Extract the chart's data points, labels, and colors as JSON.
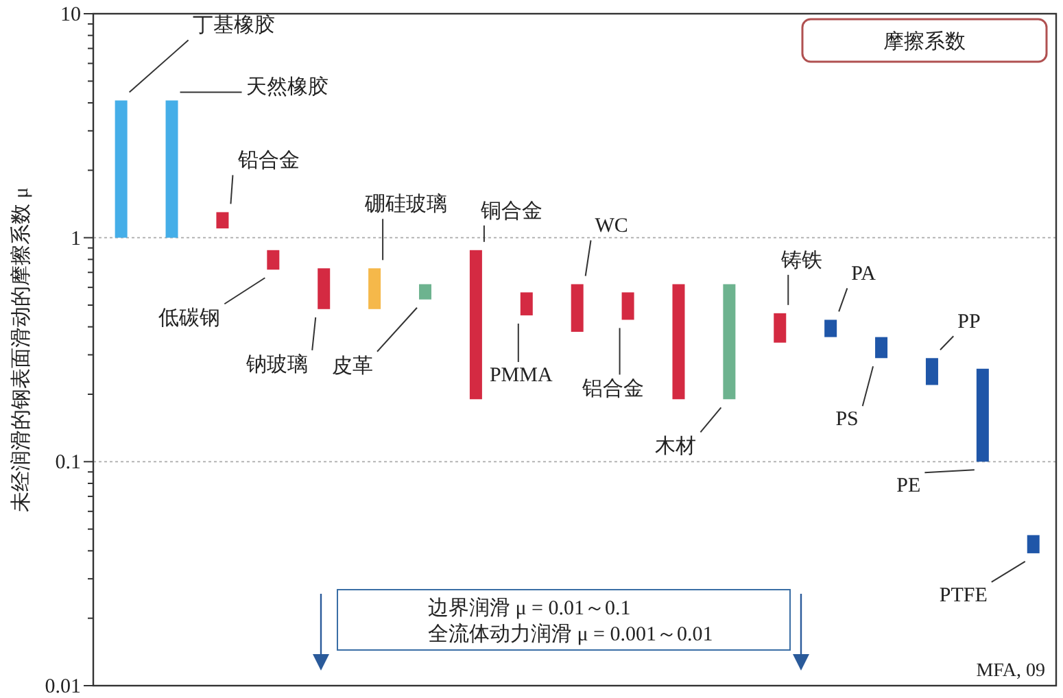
{
  "chart_data": {
    "type": "bar",
    "title": "摩擦系数",
    "ylabel": "未经润滑的钢表面滑动的摩擦系数 μ",
    "categories": [
      null,
      null,
      null,
      null,
      null,
      null,
      null,
      null,
      null,
      null,
      null,
      null,
      null,
      null,
      null,
      null,
      null,
      null,
      null
    ],
    "series": [
      {
        "name": "丁基橡胶",
        "color": "#45aee8",
        "base": [
          1.0,
          null,
          null,
          null,
          null,
          null,
          null,
          null,
          null,
          null,
          null,
          null,
          null,
          null,
          null,
          null,
          null,
          null,
          null
        ],
        "values": [
          3.1,
          null,
          null,
          null,
          null,
          null,
          null,
          null,
          null,
          null,
          null,
          null,
          null,
          null,
          null,
          null,
          null,
          null,
          null
        ]
      },
      {
        "name": "天然橡胶",
        "color": "#45aee8",
        "base": [
          null,
          1.0,
          null,
          null,
          null,
          null,
          null,
          null,
          null,
          null,
          null,
          null,
          null,
          null,
          null,
          null,
          null,
          null,
          null
        ],
        "values": [
          null,
          3.1,
          null,
          null,
          null,
          null,
          null,
          null,
          null,
          null,
          null,
          null,
          null,
          null,
          null,
          null,
          null,
          null,
          null
        ]
      },
      {
        "name": "铅合金",
        "color": "#d42a42",
        "base": [
          null,
          null,
          1.1,
          null,
          null,
          null,
          null,
          null,
          null,
          null,
          null,
          null,
          null,
          null,
          null,
          null,
          null,
          null,
          null
        ],
        "values": [
          null,
          null,
          0.2,
          null,
          null,
          null,
          null,
          null,
          null,
          null,
          null,
          null,
          null,
          null,
          null,
          null,
          null,
          null,
          null
        ]
      },
      {
        "name": "低碳钢",
        "color": "#d42a42",
        "base": [
          null,
          null,
          null,
          0.72,
          null,
          null,
          null,
          null,
          null,
          null,
          null,
          null,
          null,
          null,
          null,
          null,
          null,
          null,
          null
        ],
        "values": [
          null,
          null,
          null,
          0.16,
          null,
          null,
          null,
          null,
          null,
          null,
          null,
          null,
          null,
          null,
          null,
          null,
          null,
          null,
          null
        ]
      },
      {
        "name": "钠玻璃",
        "color": "#d42a42",
        "base": [
          null,
          null,
          null,
          null,
          0.48,
          null,
          null,
          null,
          null,
          null,
          null,
          null,
          null,
          null,
          null,
          null,
          null,
          null,
          null
        ],
        "values": [
          null,
          null,
          null,
          null,
          0.25,
          null,
          null,
          null,
          null,
          null,
          null,
          null,
          null,
          null,
          null,
          null,
          null,
          null,
          null
        ]
      },
      {
        "name": "硼硅玻璃",
        "color": "#f5b84a",
        "base": [
          null,
          null,
          null,
          null,
          null,
          0.48,
          null,
          null,
          null,
          null,
          null,
          null,
          null,
          null,
          null,
          null,
          null,
          null,
          null
        ],
        "values": [
          null,
          null,
          null,
          null,
          null,
          0.25,
          null,
          null,
          null,
          null,
          null,
          null,
          null,
          null,
          null,
          null,
          null,
          null,
          null
        ]
      },
      {
        "name": "皮革",
        "color": "#6db38f",
        "base": [
          null,
          null,
          null,
          null,
          null,
          null,
          0.53,
          null,
          null,
          null,
          null,
          null,
          null,
          null,
          null,
          null,
          null,
          null,
          null
        ],
        "values": [
          null,
          null,
          null,
          null,
          null,
          null,
          0.09,
          null,
          null,
          null,
          null,
          null,
          null,
          null,
          null,
          null,
          null,
          null,
          null
        ]
      },
      {
        "name": "铜合金",
        "color": "#d42a42",
        "base": [
          null,
          null,
          null,
          null,
          null,
          null,
          null,
          0.19,
          null,
          null,
          null,
          null,
          null,
          null,
          null,
          null,
          null,
          null,
          null
        ],
        "values": [
          null,
          null,
          null,
          null,
          null,
          null,
          null,
          0.69,
          null,
          null,
          null,
          null,
          null,
          null,
          null,
          null,
          null,
          null,
          null
        ]
      },
      {
        "name": "PMMA",
        "color": "#d42a42",
        "base": [
          null,
          null,
          null,
          null,
          null,
          null,
          null,
          null,
          0.45,
          null,
          null,
          null,
          null,
          null,
          null,
          null,
          null,
          null,
          null
        ],
        "values": [
          null,
          null,
          null,
          null,
          null,
          null,
          null,
          null,
          0.12,
          null,
          null,
          null,
          null,
          null,
          null,
          null,
          null,
          null,
          null
        ]
      },
      {
        "name": "WC",
        "color": "#d42a42",
        "base": [
          null,
          null,
          null,
          null,
          null,
          null,
          null,
          null,
          null,
          0.38,
          null,
          null,
          null,
          null,
          null,
          null,
          null,
          null,
          null
        ],
        "values": [
          null,
          null,
          null,
          null,
          null,
          null,
          null,
          null,
          null,
          0.24,
          null,
          null,
          null,
          null,
          null,
          null,
          null,
          null,
          null
        ]
      },
      {
        "name": "铝合金",
        "color": "#d42a42",
        "base": [
          null,
          null,
          null,
          null,
          null,
          null,
          null,
          null,
          null,
          null,
          0.43,
          null,
          null,
          null,
          null,
          null,
          null,
          null,
          null
        ],
        "values": [
          null,
          null,
          null,
          null,
          null,
          null,
          null,
          null,
          null,
          null,
          0.14,
          null,
          null,
          null,
          null,
          null,
          null,
          null,
          null
        ]
      },
      {
        "color": "#d42a42",
        "base": [
          null,
          null,
          null,
          null,
          null,
          null,
          null,
          null,
          null,
          null,
          null,
          0.19,
          null,
          null,
          null,
          null,
          null,
          null,
          null
        ],
        "values": [
          null,
          null,
          null,
          null,
          null,
          null,
          null,
          null,
          null,
          null,
          null,
          0.43,
          null,
          null,
          null,
          null,
          null,
          null,
          null
        ]
      },
      {
        "name": "木材",
        "color": "#6db38f",
        "base": [
          null,
          null,
          null,
          null,
          null,
          null,
          null,
          null,
          null,
          null,
          null,
          null,
          0.19,
          null,
          null,
          null,
          null,
          null,
          null
        ],
        "values": [
          null,
          null,
          null,
          null,
          null,
          null,
          null,
          null,
          null,
          null,
          null,
          null,
          0.43,
          null,
          null,
          null,
          null,
          null,
          null
        ]
      },
      {
        "name": "铸铁",
        "color": "#d42a42",
        "base": [
          null,
          null,
          null,
          null,
          null,
          null,
          null,
          null,
          null,
          null,
          null,
          null,
          null,
          0.34,
          null,
          null,
          null,
          null,
          null
        ],
        "values": [
          null,
          null,
          null,
          null,
          null,
          null,
          null,
          null,
          null,
          null,
          null,
          null,
          null,
          0.12,
          null,
          null,
          null,
          null,
          null
        ]
      },
      {
        "name": "PA",
        "color": "#1f56a8",
        "base": [
          null,
          null,
          null,
          null,
          null,
          null,
          null,
          null,
          null,
          null,
          null,
          null,
          null,
          null,
          0.36,
          null,
          null,
          null,
          null
        ],
        "values": [
          null,
          null,
          null,
          null,
          null,
          null,
          null,
          null,
          null,
          null,
          null,
          null,
          null,
          null,
          0.07,
          null,
          null,
          null,
          null
        ]
      },
      {
        "name": "PS",
        "color": "#1f56a8",
        "base": [
          null,
          null,
          null,
          null,
          null,
          null,
          null,
          null,
          null,
          null,
          null,
          null,
          null,
          null,
          null,
          0.29,
          null,
          null,
          null
        ],
        "values": [
          null,
          null,
          null,
          null,
          null,
          null,
          null,
          null,
          null,
          null,
          null,
          null,
          null,
          null,
          null,
          0.07,
          null,
          null,
          null
        ]
      },
      {
        "name": "PP",
        "color": "#1f56a8",
        "base": [
          null,
          null,
          null,
          null,
          null,
          null,
          null,
          null,
          null,
          null,
          null,
          null,
          null,
          null,
          null,
          null,
          0.22,
          null,
          null
        ],
        "values": [
          null,
          null,
          null,
          null,
          null,
          null,
          null,
          null,
          null,
          null,
          null,
          null,
          null,
          null,
          null,
          null,
          0.07,
          null,
          null
        ]
      },
      {
        "name": "PE",
        "color": "#1f56a8",
        "base": [
          null,
          null,
          null,
          null,
          null,
          null,
          null,
          null,
          null,
          null,
          null,
          null,
          null,
          null,
          null,
          null,
          null,
          0.1,
          null
        ],
        "values": [
          null,
          null,
          null,
          null,
          null,
          null,
          null,
          null,
          null,
          null,
          null,
          null,
          null,
          null,
          null,
          null,
          null,
          0.16,
          null
        ]
      },
      {
        "name": "PTFE",
        "color": "#1f56a8",
        "base": [
          null,
          null,
          null,
          null,
          null,
          null,
          null,
          null,
          null,
          null,
          null,
          null,
          null,
          null,
          null,
          null,
          null,
          null,
          0.039
        ],
        "values": [
          null,
          null,
          null,
          null,
          null,
          null,
          null,
          null,
          null,
          null,
          null,
          null,
          null,
          null,
          null,
          null,
          null,
          null,
          0.008
        ]
      }
    ],
    "log": "y",
    "ylim": [
      0.01,
      10
    ],
    "yticks": [
      0.01,
      0.1,
      1,
      10
    ],
    "grid": "y",
    "annotations": [
      "边界润滑 μ = 0.01～0.1",
      "全流体动力润滑 μ = 0.001～0.01",
      "MFA, 09"
    ]
  }
}
